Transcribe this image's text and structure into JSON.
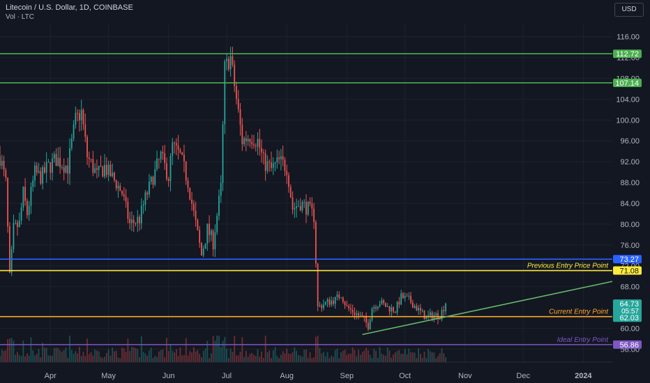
{
  "header": {
    "title": "Litecoin / U.S. Dollar, 1D, COINBASE",
    "volume_label": "Vol · LTC",
    "currency_button": "USD"
  },
  "colors": {
    "background": "#131722",
    "grid": "#1e222d",
    "up": "#26a69a",
    "down": "#ef5350",
    "axis_text": "#b2b5be",
    "resistance": "#4caf50",
    "support_blue": "#2962ff",
    "previous_entry": "#ffeb3b",
    "current_entry": "#ffa726",
    "ideal_entry": "#7e57c2",
    "trendline": "#66bb6a"
  },
  "chart_data": {
    "type": "candlestick",
    "title": "Litecoin / U.S. Dollar, 1D, COINBASE",
    "ylim": [
      53.5,
      118.5
    ],
    "y_ticks": [
      116,
      112,
      108,
      104,
      100,
      96,
      92,
      88,
      84,
      80,
      76,
      72,
      68,
      60,
      56
    ],
    "y_tick_labels": [
      "116.00",
      "112.00",
      "108.00",
      "104.00",
      "100.00",
      "96.00",
      "92.00",
      "88.00",
      "84.00",
      "80.00",
      "76.00",
      "72.00",
      "68.00",
      "60.00",
      "56.00"
    ],
    "x_range": [
      "2023-03-06",
      "2024-01-16"
    ],
    "x_ticks": [
      {
        "date": "2023-04-01",
        "label": "Apr"
      },
      {
        "date": "2023-05-01",
        "label": "May"
      },
      {
        "date": "2023-06-01",
        "label": "Jun"
      },
      {
        "date": "2023-07-01",
        "label": "Jul"
      },
      {
        "date": "2023-08-01",
        "label": "Aug"
      },
      {
        "date": "2023-09-01",
        "label": "Sep"
      },
      {
        "date": "2023-10-01",
        "label": "Oct"
      },
      {
        "date": "2023-11-01",
        "label": "Nov"
      },
      {
        "date": "2023-12-01",
        "label": "Dec"
      },
      {
        "date": "2024-01-01",
        "label": "2024"
      }
    ],
    "price_path": [
      [
        "2023-03-06",
        93.0
      ],
      [
        "2023-03-09",
        88.0
      ],
      [
        "2023-03-11",
        70.0
      ],
      [
        "2023-03-13",
        79.0
      ],
      [
        "2023-03-16",
        80.0
      ],
      [
        "2023-03-18",
        86.0
      ],
      [
        "2023-03-20",
        82.0
      ],
      [
        "2023-03-24",
        90.0
      ],
      [
        "2023-03-27",
        89.0
      ],
      [
        "2023-03-31",
        91.0
      ],
      [
        "2023-04-04",
        92.5
      ],
      [
        "2023-04-10",
        91.0
      ],
      [
        "2023-04-14",
        100.0
      ],
      [
        "2023-04-17",
        101.5
      ],
      [
        "2023-04-20",
        93.0
      ],
      [
        "2023-04-25",
        89.5
      ],
      [
        "2023-04-29",
        91.0
      ],
      [
        "2023-05-03",
        89.0
      ],
      [
        "2023-05-08",
        86.0
      ],
      [
        "2023-05-12",
        80.0
      ],
      [
        "2023-05-17",
        81.0
      ],
      [
        "2023-05-20",
        85.0
      ],
      [
        "2023-05-24",
        89.0
      ],
      [
        "2023-05-28",
        93.0
      ],
      [
        "2023-06-01",
        89.0
      ],
      [
        "2023-06-03",
        95.0
      ],
      [
        "2023-06-07",
        93.0
      ],
      [
        "2023-06-11",
        88.0
      ],
      [
        "2023-06-15",
        80.0
      ],
      [
        "2023-06-18",
        74.0
      ],
      [
        "2023-06-21",
        79.0
      ],
      [
        "2023-06-24",
        76.5
      ],
      [
        "2023-06-28",
        87.0
      ],
      [
        "2023-06-30",
        110.0
      ],
      [
        "2023-07-03",
        112.0
      ],
      [
        "2023-07-06",
        104.0
      ],
      [
        "2023-07-09",
        96.0
      ],
      [
        "2023-07-13",
        97.0
      ],
      [
        "2023-07-17",
        96.0
      ],
      [
        "2023-07-20",
        92.0
      ],
      [
        "2023-07-24",
        90.5
      ],
      [
        "2023-07-28",
        92.0
      ],
      [
        "2023-08-01",
        91.0
      ],
      [
        "2023-08-04",
        83.0
      ],
      [
        "2023-08-08",
        84.0
      ],
      [
        "2023-08-12",
        83.0
      ],
      [
        "2023-08-15",
        81.5
      ],
      [
        "2023-08-17",
        64.0
      ],
      [
        "2023-08-22",
        65.0
      ],
      [
        "2023-08-26",
        65.5
      ],
      [
        "2023-08-29",
        66.5
      ],
      [
        "2023-09-01",
        64.0
      ],
      [
        "2023-09-05",
        63.0
      ],
      [
        "2023-09-09",
        62.0
      ],
      [
        "2023-09-12",
        60.5
      ],
      [
        "2023-09-14",
        64.0
      ],
      [
        "2023-09-18",
        65.0
      ],
      [
        "2023-09-22",
        64.0
      ],
      [
        "2023-09-26",
        63.5
      ],
      [
        "2023-09-29",
        66.0
      ],
      [
        "2023-10-03",
        65.5
      ],
      [
        "2023-10-08",
        63.5
      ],
      [
        "2023-10-12",
        62.0
      ],
      [
        "2023-10-15",
        62.5
      ],
      [
        "2023-10-19",
        62.5
      ],
      [
        "2023-10-22",
        64.73
      ]
    ],
    "horizontal_levels": [
      {
        "price": 112.72,
        "color": "#4caf50",
        "label": "112.72",
        "text": ""
      },
      {
        "price": 107.14,
        "color": "#4caf50",
        "label": "107.14",
        "text": ""
      },
      {
        "price": 73.27,
        "color": "#2962ff",
        "label": "73.27",
        "text": ""
      },
      {
        "price": 71.08,
        "color": "#ffeb3b",
        "label": "71.08",
        "text": "Previous Entry Price Point"
      },
      {
        "price": 62.23,
        "color": "#ffa726",
        "label": "62.23",
        "text": "Current Entry Point"
      },
      {
        "price": 56.86,
        "color": "#7e57c2",
        "label": "56.86",
        "text": "Ideal Entry Point"
      }
    ],
    "trendline": {
      "from": [
        "2023-09-09",
        58.8
      ],
      "to": [
        "2024-01-16",
        69.0
      ]
    },
    "price_labels": [
      {
        "price": 64.73,
        "label": "64.73",
        "extra": "05:57",
        "color": "#26a69a"
      },
      {
        "price": 62.03,
        "label": "62.03",
        "extra": "",
        "color": "#26a69a"
      }
    ],
    "grid": true,
    "volume_panel": true
  }
}
